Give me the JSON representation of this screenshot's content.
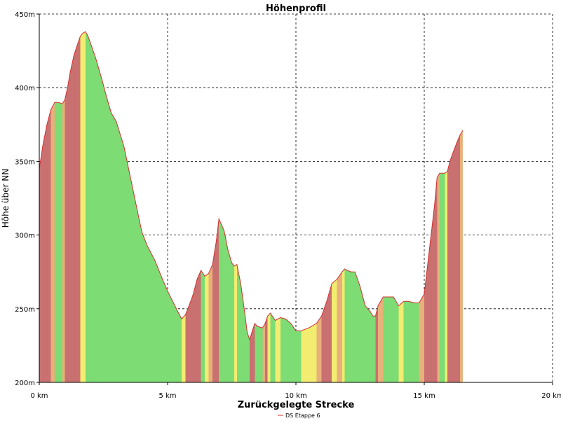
{
  "chart_data": {
    "type": "area",
    "title": "Höhenprofil",
    "xlabel": "Zurückgelegte Strecke",
    "ylabel": "Höhe über NN",
    "xlim": [
      0,
      20
    ],
    "ylim": [
      200,
      450
    ],
    "x_ticks": [
      0,
      5,
      10,
      15,
      20
    ],
    "x_tick_labels": [
      "0 km",
      "5 km",
      "10 km",
      "15 km",
      "20 km"
    ],
    "y_ticks": [
      200,
      250,
      300,
      350,
      400,
      450
    ],
    "y_tick_labels": [
      "200m",
      "250m",
      "300m",
      "350m",
      "400m",
      "450m"
    ],
    "grid": true,
    "legend_position": "bottom-center",
    "series": [
      {
        "name": "DS Etappe 6",
        "line_color": "#d03030",
        "x": [
          0,
          0.15,
          0.3,
          0.45,
          0.6,
          0.75,
          0.9,
          1.0,
          1.1,
          1.2,
          1.35,
          1.5,
          1.6,
          1.7,
          1.8,
          1.9,
          2.0,
          2.2,
          2.45,
          2.6,
          2.8,
          3.0,
          3.3,
          3.6,
          3.9,
          4.0,
          4.2,
          4.5,
          4.8,
          5.0,
          5.2,
          5.4,
          5.55,
          5.7,
          5.9,
          6.0,
          6.15,
          6.3,
          6.45,
          6.6,
          6.75,
          6.9,
          7.0,
          7.2,
          7.35,
          7.5,
          7.6,
          7.7,
          7.85,
          8.0,
          8.1,
          8.2,
          8.3,
          8.4,
          8.5,
          8.7,
          8.8,
          8.9,
          9.0,
          9.2,
          9.4,
          9.6,
          9.8,
          10.0,
          10.2,
          10.5,
          10.8,
          11.0,
          11.2,
          11.4,
          11.6,
          11.8,
          11.9,
          12.0,
          12.15,
          12.3,
          12.5,
          12.7,
          12.9,
          13.0,
          13.1,
          13.2,
          13.4,
          13.6,
          13.8,
          14.0,
          14.2,
          14.4,
          14.6,
          14.8,
          15.0,
          15.2,
          15.4,
          15.5,
          15.6,
          15.8,
          15.9,
          16.0,
          16.1,
          16.25,
          16.4,
          16.5
        ],
        "y": [
          345,
          362,
          375,
          385,
          390,
          390,
          389,
          392,
          400,
          410,
          422,
          430,
          435,
          437,
          438,
          435,
          430,
          420,
          405,
          395,
          383,
          377,
          360,
          335,
          310,
          302,
          293,
          283,
          270,
          262,
          255,
          248,
          243,
          246,
          255,
          260,
          270,
          276,
          272,
          274,
          280,
          296,
          311,
          303,
          290,
          281,
          279,
          280,
          267,
          248,
          234,
          229,
          235,
          240,
          238,
          237,
          240,
          245,
          247,
          242,
          244,
          243,
          240,
          235,
          235,
          237,
          240,
          245,
          255,
          267,
          270,
          275,
          277,
          276,
          275,
          275,
          265,
          252,
          248,
          245,
          245,
          252,
          258,
          258,
          258,
          252,
          255,
          255,
          254,
          254,
          260,
          290,
          320,
          339,
          342,
          342,
          343,
          350,
          355,
          362,
          368,
          371
        ]
      }
    ]
  }
}
